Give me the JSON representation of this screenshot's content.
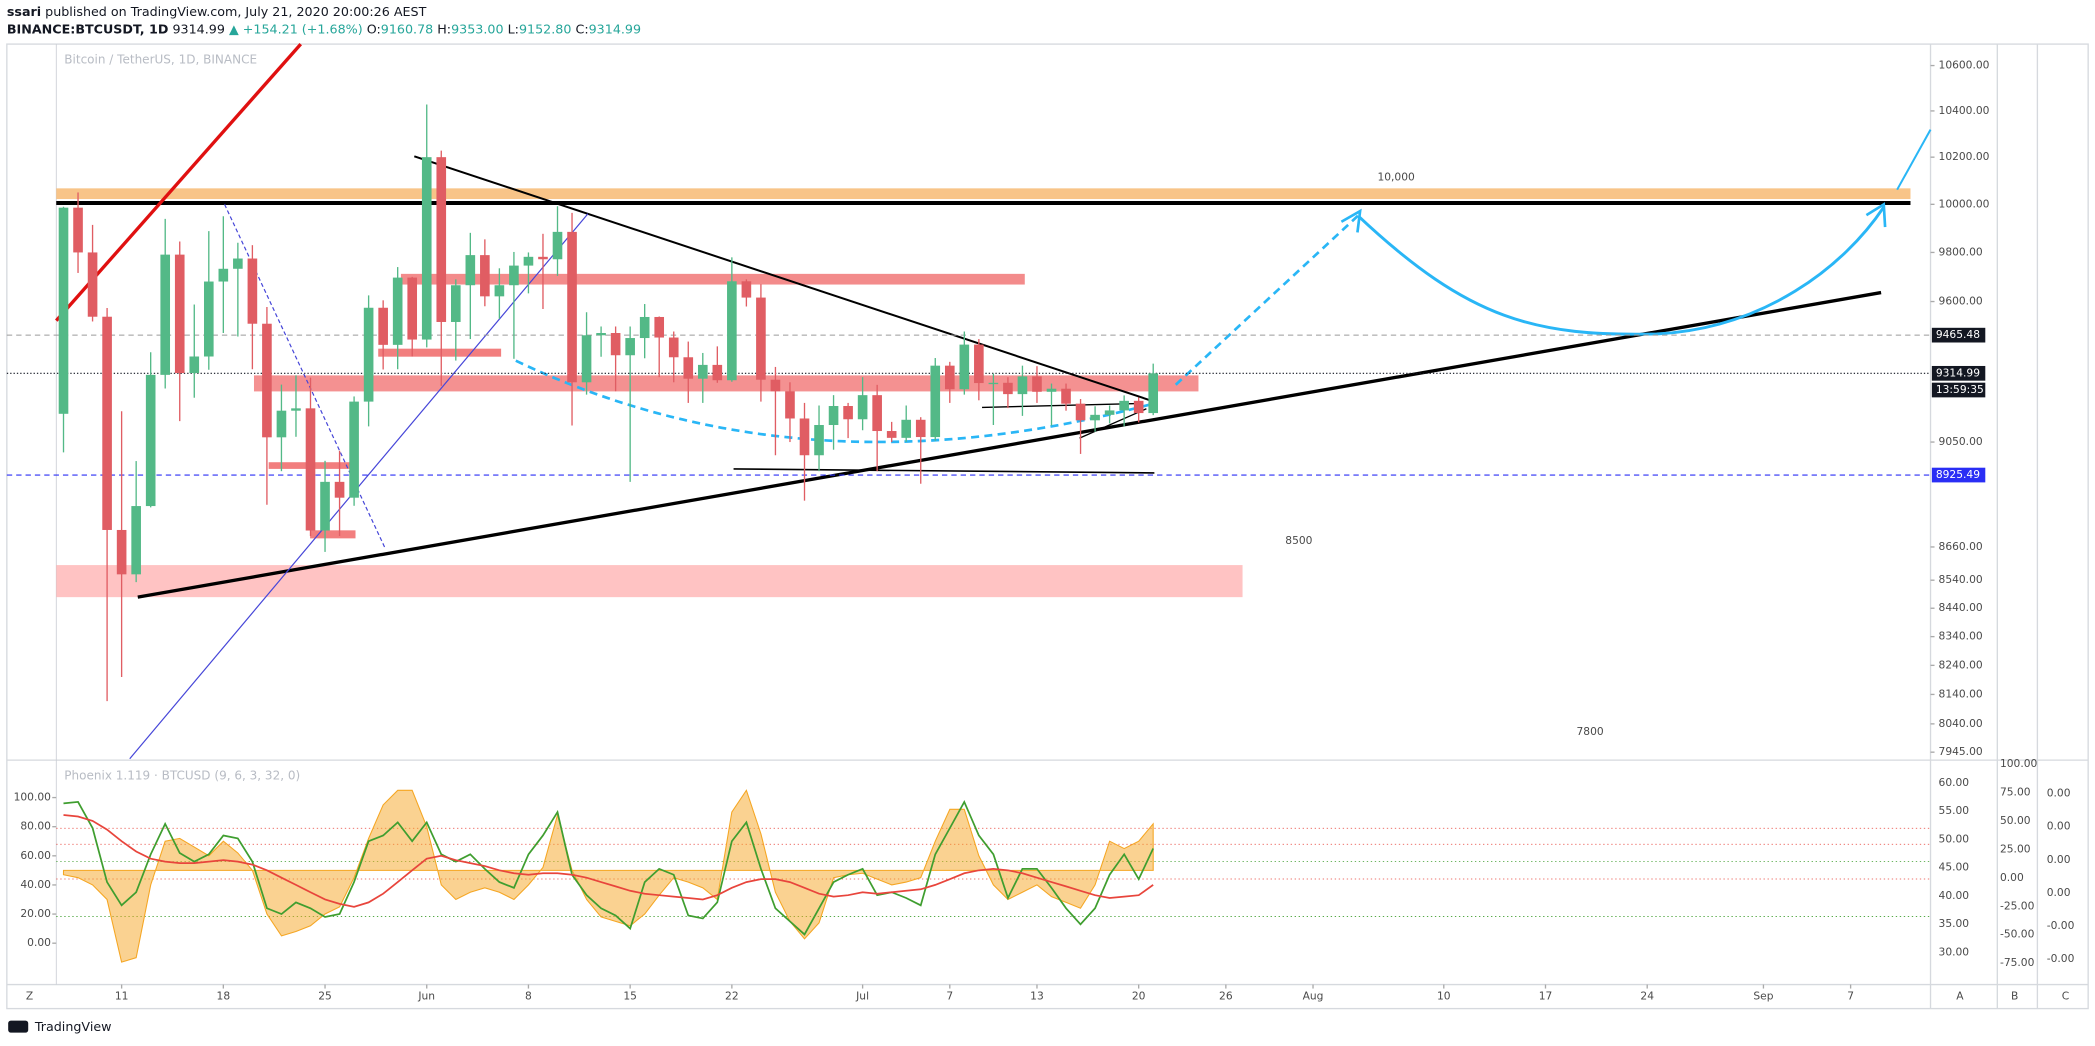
{
  "header": {
    "author": "ssari",
    "published": " published on TradingView.com, July 21, 2020 20:00:26 AEST",
    "symbol": "BINANCE:BTCUSDT, 1D",
    "last": "9314.99",
    "change": "▲ +154.21 (+1.68%)",
    "ohlc": [
      {
        "key": "O:",
        "value": "9160.78"
      },
      {
        "key": "H:",
        "value": "9353.00"
      },
      {
        "key": "L:",
        "value": "9152.80"
      },
      {
        "key": "C:",
        "value": "9314.99"
      }
    ]
  },
  "chart_data": [
    {
      "type": "candlestick",
      "legend": "Bitcoin / TetherUS, 1D, BINANCE",
      "up_color": "#53b987",
      "down_color": "#e05d63",
      "log_scale": true,
      "grid": false,
      "xlim": [
        -3.9,
        128.5
      ],
      "ylim": [
        7923,
        10696
      ],
      "xticks": [
        {
          "value": 4,
          "label": "11"
        },
        {
          "value": 11,
          "label": "18"
        },
        {
          "value": 18,
          "label": "25"
        },
        {
          "value": 25,
          "label": "Jun"
        },
        {
          "value": 32,
          "label": "8"
        },
        {
          "value": 39,
          "label": "15"
        },
        {
          "value": 46,
          "label": "22"
        },
        {
          "value": 55,
          "label": "Jul"
        },
        {
          "value": 61,
          "label": "7"
        },
        {
          "value": 67,
          "label": "13"
        },
        {
          "value": 74,
          "label": "20"
        },
        {
          "value": 80,
          "label": "26"
        },
        {
          "value": 86,
          "label": "Aug"
        },
        {
          "value": 95,
          "label": "10"
        },
        {
          "value": 102,
          "label": "17"
        },
        {
          "value": 109,
          "label": "24"
        },
        {
          "value": 117,
          "label": "Sep"
        },
        {
          "value": 123,
          "label": "7"
        }
      ],
      "yticks": [
        {
          "value": 10600,
          "label": "10600.00"
        },
        {
          "value": 10400,
          "label": "10400.00"
        },
        {
          "value": 10200,
          "label": "10200.00"
        },
        {
          "value": 10000,
          "label": "10000.00"
        },
        {
          "value": 9800,
          "label": "9800.00"
        },
        {
          "value": 9600,
          "label": "9600.00"
        },
        {
          "value": 9050,
          "label": "9050.00"
        },
        {
          "value": 8660,
          "label": "8660.00"
        },
        {
          "value": 8540,
          "label": "8540.00"
        },
        {
          "value": 8440,
          "label": "8440.00"
        },
        {
          "value": 8340,
          "label": "8340.00"
        },
        {
          "value": 8240,
          "label": "8240.00"
        },
        {
          "value": 8140,
          "label": "8140.00"
        },
        {
          "value": 8040,
          "label": "8040.00"
        },
        {
          "value": 7945,
          "label": "7945.00"
        }
      ],
      "open": [
        9158,
        9986,
        9800,
        9539,
        8722,
        8561,
        8810,
        9309,
        9791,
        9316,
        9381,
        9681,
        9733,
        9775,
        9511,
        9068,
        9170,
        9179,
        8720,
        8900,
        8841,
        9205,
        9575,
        9427,
        9697,
        9448,
        10200,
        9518,
        9666,
        9789,
        9621,
        9666,
        9746,
        9782,
        9772,
        9885,
        9280,
        9465,
        9474,
        9386,
        9454,
        9538,
        9456,
        9378,
        9294,
        9348,
        9288,
        9682,
        9616,
        9290,
        9245,
        9140,
        9000,
        9115,
        9188,
        9137,
        9230,
        9092,
        9066,
        9135,
        9069,
        9345,
        9253,
        9428,
        9277,
        9278,
        9234,
        9303,
        9243,
        9255,
        9197,
        9133,
        9154,
        9171,
        9208,
        9160.78
      ],
      "high": [
        9990,
        10050,
        9914,
        9574,
        9168,
        8978,
        9398,
        9939,
        9845,
        9588,
        9888,
        9950,
        9840,
        9830,
        9578,
        9271,
        9307,
        9298,
        8979,
        9017,
        9225,
        9625,
        9605,
        9740,
        9700,
        10428,
        10228,
        9690,
        9881,
        9854,
        9735,
        9802,
        9800,
        9877,
        9992,
        9964,
        9557,
        9500,
        9500,
        9500,
        9590,
        9540,
        9480,
        9440,
        9395,
        9421,
        9780,
        9690,
        9670,
        9340,
        9280,
        9200,
        9190,
        9230,
        9200,
        9300,
        9270,
        9127,
        9190,
        9145,
        9375,
        9360,
        9480,
        9450,
        9314,
        9300,
        9345,
        9343,
        9275,
        9275,
        9215,
        9187,
        9190,
        9229,
        9221,
        9353
      ],
      "low": [
        9011,
        9716,
        9520,
        8117,
        8200,
        8533,
        8805,
        9256,
        9130,
        9220,
        9329,
        9474,
        9460,
        9331,
        8815,
        8940,
        9070,
        8700,
        8642,
        8700,
        8811,
        9110,
        9330,
        9331,
        9381,
        9417,
        9266,
        9365,
        9450,
        9581,
        9531,
        9372,
        9633,
        9570,
        9704,
        9113,
        9232,
        9380,
        9245,
        8900,
        9374,
        9300,
        9280,
        9200,
        9200,
        9278,
        9282,
        9580,
        9205,
        9000,
        9050,
        8830,
        8940,
        9021,
        9065,
        9095,
        8940,
        9050,
        9051,
        8893,
        9055,
        9200,
        9232,
        9210,
        9115,
        9180,
        9150,
        9200,
        9113,
        9170,
        9005,
        9089,
        9121,
        9110,
        9125,
        9152.8
      ],
      "close": [
        9986,
        9800,
        9539,
        8722,
        8561,
        8810,
        9309,
        9791,
        9316,
        9381,
        9681,
        9733,
        9775,
        9511,
        9068,
        9170,
        9179,
        8720,
        8900,
        8841,
        9205,
        9575,
        9427,
        9697,
        9448,
        10200,
        9518,
        9666,
        9789,
        9621,
        9666,
        9746,
        9782,
        9772,
        9885,
        9280,
        9465,
        9474,
        9386,
        9454,
        9538,
        9456,
        9378,
        9294,
        9348,
        9288,
        9682,
        9616,
        9290,
        9245,
        9140,
        9000,
        9115,
        9188,
        9137,
        9230,
        9092,
        9066,
        9135,
        9069,
        9345,
        9253,
        9428,
        9277,
        9278,
        9234,
        9303,
        9243,
        9255,
        9197,
        9133,
        9154,
        9171,
        9208,
        9160.78,
        9314.99
      ],
      "price_lines": [
        {
          "value": 9465.48,
          "color": "#131722",
          "line": "#9a9a9a",
          "style": "dashed"
        },
        {
          "value": 9314.99,
          "color": "#131722",
          "line": "#131722",
          "style": "dotted",
          "countdown": "13:59:35"
        },
        {
          "value": 8925.49,
          "color": "#2a2ef5",
          "line": "#2a2ef5",
          "style": "dashed"
        }
      ]
    },
    {
      "type": "line",
      "legend": "Phoenix 1.119 · BTCUSD (9, 6, 3, 32, 0)",
      "xlim": [
        -3.9,
        128.5
      ],
      "ylim": [
        -28.4,
        124.8
      ],
      "baseline": 50,
      "yticks": [
        {
          "value": 100,
          "label": "100.00"
        },
        {
          "value": 80,
          "label": "80.00"
        },
        {
          "value": 60,
          "label": "60.00"
        },
        {
          "value": 40,
          "label": "40.00"
        },
        {
          "value": 20,
          "label": "20.00"
        },
        {
          "value": 0,
          "label": "0.00"
        }
      ],
      "series": [
        {
          "color": "#f5a623",
          "area": true,
          "values": [
            47,
            45,
            40,
            30,
            -13,
            -10,
            40,
            70,
            72,
            66,
            60,
            70,
            62,
            50,
            20,
            5,
            8,
            12,
            20,
            25,
            45,
            72,
            95,
            105,
            105,
            80,
            40,
            30,
            35,
            38,
            35,
            30,
            40,
            52,
            88,
            50,
            30,
            18,
            15,
            12,
            20,
            33,
            45,
            42,
            38,
            30,
            90,
            105,
            75,
            35,
            15,
            3,
            14,
            45,
            47,
            48,
            44,
            40,
            42,
            45,
            70,
            92,
            92,
            60,
            40,
            30,
            35,
            40,
            32,
            28,
            24,
            40,
            70,
            65,
            70,
            82
          ]
        },
        {
          "color": "#3f9e2f",
          "values": [
            96,
            97,
            79,
            42,
            26,
            35,
            61,
            82,
            62,
            56,
            61,
            74,
            72,
            56,
            24,
            20,
            28,
            24,
            18,
            20,
            42,
            70,
            74,
            83,
            70,
            83,
            61,
            56,
            61,
            51,
            42,
            38,
            61,
            74,
            90,
            47,
            33,
            24,
            19,
            10,
            42,
            51,
            47,
            19,
            17,
            28,
            70,
            83,
            51,
            24,
            15,
            6,
            24,
            42,
            47,
            51,
            33,
            35,
            31,
            26,
            61,
            79,
            97,
            74,
            61,
            31,
            51,
            51,
            38,
            24,
            13,
            24,
            47,
            61,
            44,
            65
          ]
        },
        {
          "color": "#e8453c",
          "values": [
            88,
            87,
            84,
            78,
            70,
            63,
            58,
            56,
            55,
            55,
            56,
            57,
            56,
            54,
            50,
            45,
            40,
            35,
            30,
            27,
            25,
            28,
            34,
            42,
            50,
            58,
            60,
            57,
            55,
            53,
            50,
            48,
            47,
            48,
            48,
            47,
            45,
            42,
            39,
            36,
            34,
            33,
            32,
            31,
            30,
            33,
            38,
            42,
            44,
            44,
            42,
            38,
            34,
            32,
            33,
            35,
            34,
            35,
            36,
            37,
            40,
            44,
            48,
            50,
            51,
            50,
            48,
            45,
            42,
            39,
            36,
            33,
            31,
            32,
            33,
            40
          ]
        }
      ],
      "right_axis_a": [
        "60.00",
        "55.00",
        "50.00",
        "45.00",
        "40.00",
        "35.00",
        "30.00"
      ],
      "right_axis_b": [
        "100.00",
        "75.00",
        "50.00",
        "25.00",
        "0.00",
        "-25.00",
        "-50.00",
        "-75.00"
      ],
      "right_axis_c": [
        "0.00",
        "0.00",
        "0.00",
        "0.00",
        "-0.00",
        "-0.00"
      ]
    }
  ],
  "annotations": [
    "10,000",
    "8500",
    "7800"
  ],
  "toolbar": [
    "Z",
    "A",
    "B",
    "C"
  ],
  "footer": "TradingView"
}
